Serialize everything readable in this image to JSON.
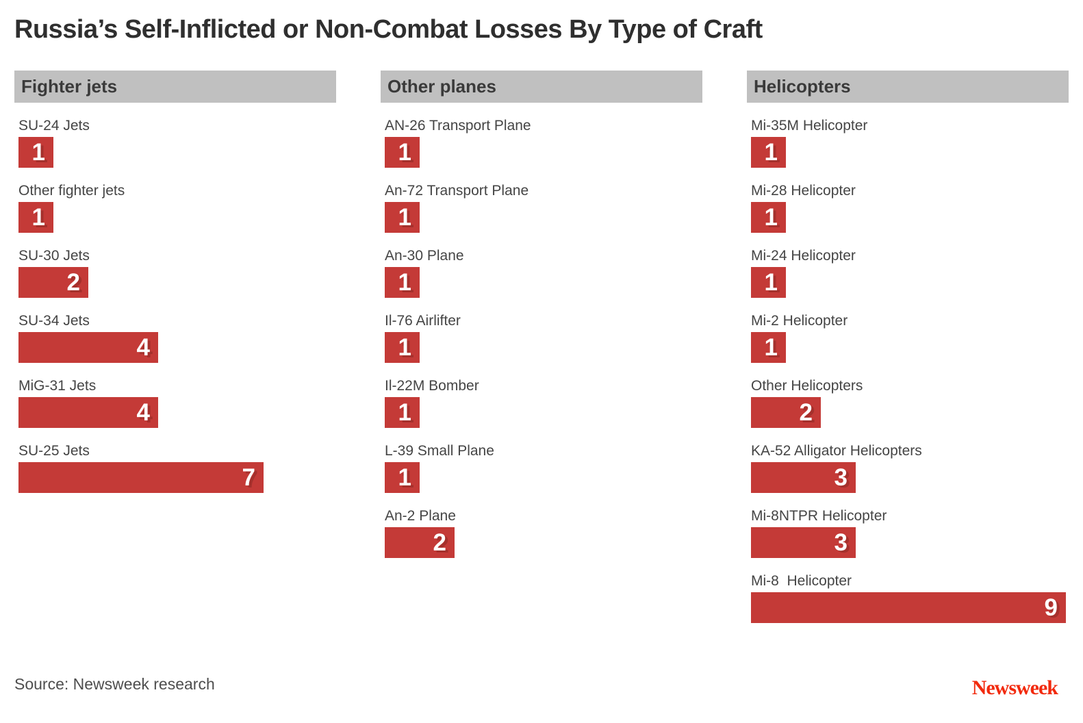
{
  "title": "Russia’s Self-Inflicted or Non-Combat Losses By Type of Craft",
  "source": "Source: Newsweek research",
  "logo_text": "Newsweek",
  "colors": {
    "bar": "#c43a37",
    "bar_value_shadow": "#a5302c",
    "section_header_bg": "#c0c0c0",
    "logo_red": "#f22a0d"
  },
  "chart_data": {
    "type": "bar",
    "orientation": "horizontal",
    "title": "Russia’s Self-Inflicted or Non-Combat Losses By Type of Craft",
    "value_range": [
      0,
      9
    ],
    "grid": false,
    "legend": false,
    "sections": [
      {
        "header": "Fighter jets",
        "items": [
          {
            "label": "SU-24 Jets",
            "value": 1
          },
          {
            "label": "Other fighter jets",
            "value": 1
          },
          {
            "label": "SU-30 Jets",
            "value": 2
          },
          {
            "label": "SU-34 Jets",
            "value": 4
          },
          {
            "label": "MiG-31 Jets",
            "value": 4
          },
          {
            "label": "SU-25 Jets",
            "value": 7
          }
        ]
      },
      {
        "header": "Other planes",
        "items": [
          {
            "label": "AN-26 Transport Plane",
            "value": 1
          },
          {
            "label": "An-72 Transport Plane",
            "value": 1
          },
          {
            "label": "An-30 Plane",
            "value": 1
          },
          {
            "label": "Il-76 Airlifter",
            "value": 1
          },
          {
            "label": "Il-22M Bomber",
            "value": 1
          },
          {
            "label": "L-39 Small Plane",
            "value": 1
          },
          {
            "label": "An-2 Plane",
            "value": 2
          }
        ]
      },
      {
        "header": "Helicopters",
        "items": [
          {
            "label": "Mi-35M Helicopter",
            "value": 1
          },
          {
            "label": "Mi-28 Helicopter",
            "value": 1
          },
          {
            "label": "Mi-24 Helicopter",
            "value": 1
          },
          {
            "label": "Mi-2 Helicopter",
            "value": 1
          },
          {
            "label": "Other Helicopters",
            "value": 2
          },
          {
            "label": "KA-52 Alligator Helicopters",
            "value": 3
          },
          {
            "label": "Mi-8NTPR Helicopter",
            "value": 3
          },
          {
            "label": "Mi-8  Helicopter",
            "value": 9
          }
        ]
      }
    ]
  }
}
